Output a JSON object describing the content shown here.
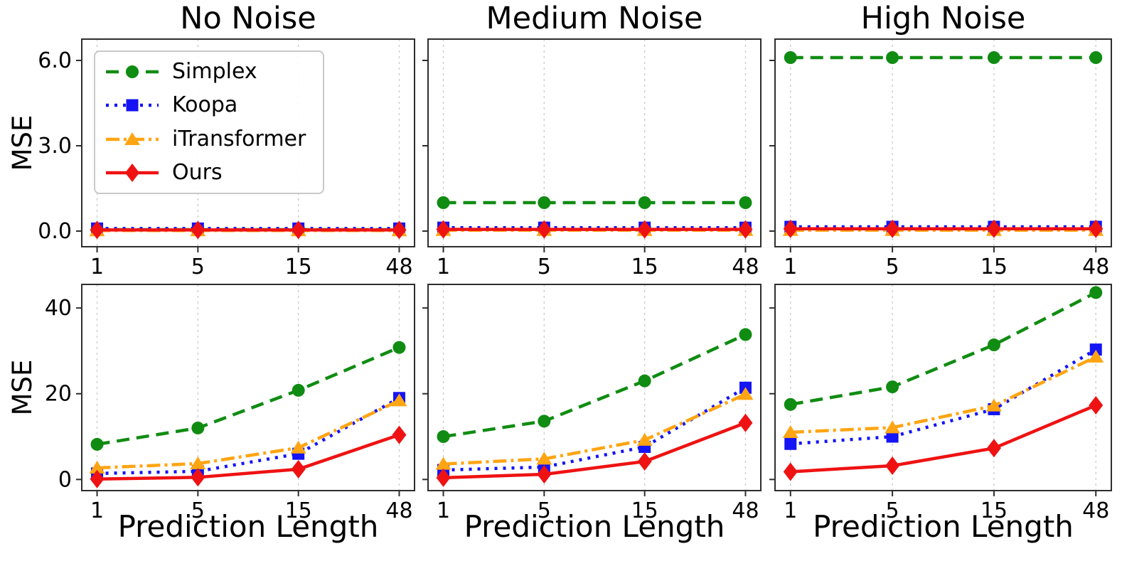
{
  "figure": {
    "background": "#ffffff",
    "text_color": "#000000",
    "grid_color": "#cdcdcd",
    "spine_color": "#2e2e2e"
  },
  "chart_data": {
    "type": "line",
    "grid": "vertical-dashed",
    "xlabel": "Prediction Length",
    "ylabel": "MSE",
    "categories": [
      "1",
      "5",
      "15",
      "48"
    ],
    "legend": {
      "position": "upper-left of first panel",
      "labels": [
        "Simplex",
        "Koopa",
        "iTransformer",
        "Ours"
      ]
    },
    "series_styles": [
      {
        "name": "Simplex",
        "color": "#108c12",
        "dash": "18 10",
        "marker": "circle"
      },
      {
        "name": "Koopa",
        "color": "#1414f5",
        "dash": "4 8",
        "marker": "square"
      },
      {
        "name": "iTransformer",
        "color": "#ffa513",
        "dash": "19 6 4 6",
        "marker": "triangle"
      },
      {
        "name": "Ours",
        "color": "#ef1212",
        "dash": "none",
        "marker": "diamond"
      }
    ],
    "rows": [
      {
        "ylim": [
          -0.55,
          6.75
        ],
        "yticks": [
          {
            "v": 0,
            "label": "0.0"
          },
          {
            "v": 3,
            "label": "3.0"
          },
          {
            "v": 6,
            "label": "6.0"
          }
        ]
      },
      {
        "ylim": [
          -2.6,
          45.5
        ],
        "yticks": [
          {
            "v": 0,
            "label": "0"
          },
          {
            "v": 20,
            "label": "20"
          },
          {
            "v": 40,
            "label": "40"
          }
        ]
      }
    ],
    "panels": [
      {
        "title": "No Noise",
        "series": [
          {
            "name": "Simplex",
            "values": [
              0.05,
              0.05,
              0.05,
              0.05
            ]
          },
          {
            "name": "Koopa",
            "values": [
              0.09,
              0.09,
              0.09,
              0.09
            ]
          },
          {
            "name": "iTransformer",
            "values": [
              0.02,
              0.02,
              0.02,
              0.02
            ]
          },
          {
            "name": "Ours",
            "values": [
              0.04,
              0.04,
              0.04,
              0.04
            ]
          }
        ]
      },
      {
        "title": "Medium Noise",
        "series": [
          {
            "name": "Simplex",
            "values": [
              1.0,
              1.0,
              1.0,
              1.0
            ]
          },
          {
            "name": "Koopa",
            "values": [
              0.12,
              0.12,
              0.12,
              0.12
            ]
          },
          {
            "name": "iTransformer",
            "values": [
              0.03,
              0.03,
              0.03,
              0.03
            ]
          },
          {
            "name": "Ours",
            "values": [
              0.06,
              0.06,
              0.06,
              0.06
            ]
          }
        ]
      },
      {
        "title": "High Noise",
        "series": [
          {
            "name": "Simplex",
            "values": [
              6.1,
              6.1,
              6.1,
              6.1
            ]
          },
          {
            "name": "Koopa",
            "values": [
              0.15,
              0.15,
              0.15,
              0.15
            ]
          },
          {
            "name": "iTransformer",
            "values": [
              0.03,
              0.03,
              0.03,
              0.03
            ]
          },
          {
            "name": "Ours",
            "values": [
              0.08,
              0.08,
              0.08,
              0.08
            ]
          }
        ]
      },
      {
        "title": "",
        "series": [
          {
            "name": "Simplex",
            "values": [
              8.2,
              12.0,
              20.8,
              30.8
            ]
          },
          {
            "name": "Koopa",
            "values": [
              1.4,
              1.9,
              6.0,
              19.0
            ]
          },
          {
            "name": "iTransformer",
            "values": [
              2.7,
              3.7,
              7.4,
              18.4
            ]
          },
          {
            "name": "Ours",
            "values": [
              0.1,
              0.5,
              2.4,
              10.4
            ]
          }
        ]
      },
      {
        "title": "",
        "series": [
          {
            "name": "Simplex",
            "values": [
              10.0,
              13.6,
              23.0,
              33.8
            ]
          },
          {
            "name": "Koopa",
            "values": [
              2.2,
              2.9,
              7.6,
              21.4
            ]
          },
          {
            "name": "iTransformer",
            "values": [
              3.6,
              4.8,
              9.2,
              19.9
            ]
          },
          {
            "name": "Ours",
            "values": [
              0.4,
              1.2,
              4.2,
              13.2
            ]
          }
        ]
      },
      {
        "title": "",
        "series": [
          {
            "name": "Simplex",
            "values": [
              17.5,
              21.6,
              31.4,
              43.6
            ]
          },
          {
            "name": "Koopa",
            "values": [
              8.3,
              10.0,
              16.4,
              30.3
            ]
          },
          {
            "name": "iTransformer",
            "values": [
              11.0,
              12.1,
              17.2,
              28.6
            ]
          },
          {
            "name": "Ours",
            "values": [
              1.8,
              3.2,
              7.3,
              17.3
            ]
          }
        ]
      }
    ]
  }
}
